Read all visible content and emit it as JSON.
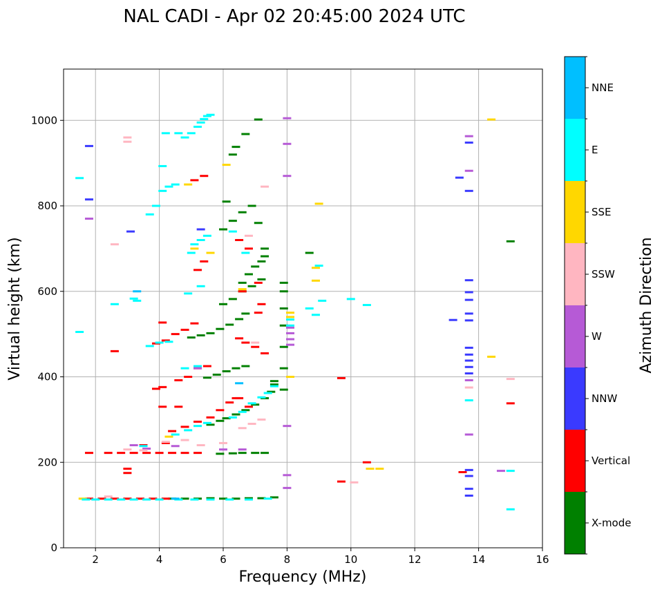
{
  "chart_data": {
    "type": "scatter",
    "title": "NAL CADI - Apr 02 20:45:00 2024 UTC",
    "xlabel": "Frequency (MHz)",
    "ylabel": "Virtual height (km)",
    "xlim": [
      1,
      16
    ],
    "ylim": [
      0,
      1120
    ],
    "xticks": [
      2,
      4,
      6,
      8,
      10,
      12,
      14,
      16
    ],
    "yticks": [
      0,
      200,
      400,
      600,
      800,
      1000
    ],
    "grid": true,
    "colorbar": {
      "title": "Azimuth Direction",
      "categories": [
        "X-mode",
        "Vertical",
        "NNW",
        "W",
        "SSW",
        "SSE",
        "E",
        "NNE"
      ],
      "colors": [
        "#008000",
        "#ff0000",
        "#3a3aff",
        "#b65ad6",
        "#ffb6c1",
        "#ffd700",
        "#00ffff",
        "#00bfff"
      ]
    },
    "series": [
      {
        "name": "X-mode",
        "points": [
          [
            4.4,
            115
          ],
          [
            4.8,
            115
          ],
          [
            5.2,
            115
          ],
          [
            5.6,
            116
          ],
          [
            6.0,
            115
          ],
          [
            6.4,
            115
          ],
          [
            6.8,
            116
          ],
          [
            7.2,
            116
          ],
          [
            7.6,
            118
          ],
          [
            5.9,
            220
          ],
          [
            6.3,
            221
          ],
          [
            6.6,
            222
          ],
          [
            7.0,
            222
          ],
          [
            7.3,
            222
          ],
          [
            5.6,
            288
          ],
          [
            5.9,
            297
          ],
          [
            6.1,
            303
          ],
          [
            6.4,
            312
          ],
          [
            6.7,
            322
          ],
          [
            7.0,
            335
          ],
          [
            7.3,
            350
          ],
          [
            7.5,
            365
          ],
          [
            7.6,
            382
          ],
          [
            7.6,
            390
          ],
          [
            5.5,
            398
          ],
          [
            5.8,
            405
          ],
          [
            6.1,
            413
          ],
          [
            6.4,
            420
          ],
          [
            6.7,
            425
          ],
          [
            5.0,
            492
          ],
          [
            5.3,
            497
          ],
          [
            5.6,
            502
          ],
          [
            5.9,
            512
          ],
          [
            6.2,
            522
          ],
          [
            6.5,
            535
          ],
          [
            6.7,
            548
          ],
          [
            6.0,
            570
          ],
          [
            6.3,
            582
          ],
          [
            6.6,
            600
          ],
          [
            6.9,
            612
          ],
          [
            7.2,
            628
          ],
          [
            6.6,
            620
          ],
          [
            6.8,
            640
          ],
          [
            7.0,
            658
          ],
          [
            7.2,
            670
          ],
          [
            7.3,
            682
          ],
          [
            6.0,
            745
          ],
          [
            6.3,
            765
          ],
          [
            6.6,
            785
          ],
          [
            6.9,
            800
          ],
          [
            7.1,
            760
          ],
          [
            7.3,
            700
          ],
          [
            6.1,
            810
          ],
          [
            6.4,
            938
          ],
          [
            6.7,
            968
          ],
          [
            6.3,
            920
          ],
          [
            7.9,
            370
          ],
          [
            7.9,
            420
          ],
          [
            7.9,
            470
          ],
          [
            7.9,
            520
          ],
          [
            7.9,
            560
          ],
          [
            7.9,
            600
          ],
          [
            7.9,
            620
          ],
          [
            8.7,
            690
          ],
          [
            7.1,
            1002
          ],
          [
            15.0,
            717
          ]
        ]
      },
      {
        "name": "Vertical",
        "points": [
          [
            1.8,
            115
          ],
          [
            2.2,
            115
          ],
          [
            2.6,
            115
          ],
          [
            3.0,
            115
          ],
          [
            3.4,
            115
          ],
          [
            3.8,
            115
          ],
          [
            4.2,
            115
          ],
          [
            2.4,
            222
          ],
          [
            2.8,
            222
          ],
          [
            3.2,
            222
          ],
          [
            3.6,
            222
          ],
          [
            4.0,
            222
          ],
          [
            4.4,
            222
          ],
          [
            4.8,
            222
          ],
          [
            5.2,
            222
          ],
          [
            3.5,
            240
          ],
          [
            4.2,
            245
          ],
          [
            4.4,
            273
          ],
          [
            4.8,
            283
          ],
          [
            5.2,
            295
          ],
          [
            5.6,
            305
          ],
          [
            5.9,
            322
          ],
          [
            6.2,
            340
          ],
          [
            6.5,
            350
          ],
          [
            3.9,
            372
          ],
          [
            4.1,
            376
          ],
          [
            4.6,
            392
          ],
          [
            4.9,
            400
          ],
          [
            5.2,
            420
          ],
          [
            5.5,
            425
          ],
          [
            6.4,
            350
          ],
          [
            6.8,
            330
          ],
          [
            3.9,
            478
          ],
          [
            4.2,
            485
          ],
          [
            4.5,
            500
          ],
          [
            4.8,
            510
          ],
          [
            5.1,
            525
          ],
          [
            4.1,
            527
          ],
          [
            6.5,
            490
          ],
          [
            6.7,
            480
          ],
          [
            7.0,
            470
          ],
          [
            7.3,
            455
          ],
          [
            7.1,
            550
          ],
          [
            7.2,
            570
          ],
          [
            6.6,
            600
          ],
          [
            7.1,
            620
          ],
          [
            5.2,
            650
          ],
          [
            5.4,
            670
          ],
          [
            6.8,
            700
          ],
          [
            6.5,
            720
          ],
          [
            5.1,
            860
          ],
          [
            5.4,
            870
          ],
          [
            3.0,
            175
          ],
          [
            3.0,
            185
          ],
          [
            1.8,
            222
          ],
          [
            2.6,
            460
          ],
          [
            4.1,
            330
          ],
          [
            4.6,
            330
          ],
          [
            9.7,
            397
          ],
          [
            9.7,
            155
          ],
          [
            10.5,
            200
          ],
          [
            13.5,
            177
          ],
          [
            15.0,
            338
          ]
        ]
      },
      {
        "name": "NNW",
        "points": [
          [
            13.7,
            122
          ],
          [
            13.7,
            138
          ],
          [
            13.7,
            168
          ],
          [
            13.7,
            182
          ],
          [
            13.7,
            408
          ],
          [
            13.7,
            423
          ],
          [
            13.7,
            438
          ],
          [
            13.7,
            452
          ],
          [
            13.7,
            468
          ],
          [
            13.7,
            532
          ],
          [
            13.7,
            548
          ],
          [
            13.7,
            580
          ],
          [
            13.7,
            598
          ],
          [
            13.7,
            626
          ],
          [
            13.7,
            835
          ],
          [
            13.7,
            948
          ],
          [
            13.2,
            533
          ],
          [
            13.4,
            866
          ],
          [
            3.1,
            740
          ],
          [
            5.3,
            745
          ],
          [
            1.8,
            815
          ],
          [
            1.8,
            940
          ]
        ]
      },
      {
        "name": "W",
        "points": [
          [
            8.1,
            475
          ],
          [
            8.1,
            488
          ],
          [
            8.1,
            502
          ],
          [
            8.1,
            515
          ],
          [
            8.0,
            170
          ],
          [
            8.0,
            140
          ],
          [
            8.0,
            285
          ],
          [
            8.0,
            1005
          ],
          [
            8.0,
            945
          ],
          [
            8.0,
            870
          ],
          [
            13.7,
            265
          ],
          [
            13.7,
            392
          ],
          [
            13.7,
            882
          ],
          [
            13.7,
            963
          ],
          [
            14.7,
            180
          ],
          [
            3.2,
            240
          ],
          [
            3.6,
            232
          ],
          [
            4.5,
            238
          ],
          [
            6.0,
            230
          ],
          [
            6.6,
            230
          ],
          [
            1.8,
            770
          ],
          [
            5.2,
            420
          ]
        ]
      },
      {
        "name": "SSW",
        "points": [
          [
            2.4,
            120
          ],
          [
            3.0,
            230
          ],
          [
            3.5,
            228
          ],
          [
            4.2,
            248
          ],
          [
            4.8,
            252
          ],
          [
            5.3,
            240
          ],
          [
            6.0,
            245
          ],
          [
            6.6,
            280
          ],
          [
            6.9,
            290
          ],
          [
            7.2,
            300
          ],
          [
            6.8,
            730
          ],
          [
            7.0,
            480
          ],
          [
            7.3,
            845
          ],
          [
            3.0,
            960
          ],
          [
            3.0,
            950
          ],
          [
            2.6,
            710
          ],
          [
            15.0,
            395
          ],
          [
            10.1,
            153
          ],
          [
            13.7,
            375
          ]
        ]
      },
      {
        "name": "SSE",
        "points": [
          [
            1.6,
            115
          ],
          [
            8.1,
            540
          ],
          [
            8.1,
            550
          ],
          [
            8.1,
            400
          ],
          [
            8.9,
            625
          ],
          [
            8.9,
            655
          ],
          [
            9.0,
            805
          ],
          [
            10.6,
            185
          ],
          [
            10.9,
            185
          ],
          [
            14.4,
            447
          ],
          [
            14.4,
            1002
          ],
          [
            4.3,
            260
          ],
          [
            6.6,
            605
          ],
          [
            6.1,
            896
          ],
          [
            5.6,
            690
          ],
          [
            4.9,
            850
          ],
          [
            5.1,
            700
          ]
        ]
      },
      {
        "name": "E",
        "points": [
          [
            1.7,
            113
          ],
          [
            2.0,
            113
          ],
          [
            2.4,
            113
          ],
          [
            2.8,
            113
          ],
          [
            3.2,
            113
          ],
          [
            3.6,
            113
          ],
          [
            4.0,
            113
          ],
          [
            4.6,
            113
          ],
          [
            5.1,
            113
          ],
          [
            5.6,
            113
          ],
          [
            6.2,
            113
          ],
          [
            6.8,
            113
          ],
          [
            7.4,
            115
          ],
          [
            3.5,
            238
          ],
          [
            4.5,
            265
          ],
          [
            4.9,
            275
          ],
          [
            5.2,
            285
          ],
          [
            5.5,
            292
          ],
          [
            6.3,
            305
          ],
          [
            6.6,
            318
          ],
          [
            6.9,
            338
          ],
          [
            7.2,
            352
          ],
          [
            7.4,
            362
          ],
          [
            7.6,
            378
          ],
          [
            4.0,
            480
          ],
          [
            4.3,
            482
          ],
          [
            3.7,
            472
          ],
          [
            4.8,
            420
          ],
          [
            5.2,
            425
          ],
          [
            4.9,
            595
          ],
          [
            5.3,
            612
          ],
          [
            3.2,
            583
          ],
          [
            3.3,
            578
          ],
          [
            2.6,
            570
          ],
          [
            1.5,
            505
          ],
          [
            1.5,
            865
          ],
          [
            3.7,
            780
          ],
          [
            3.9,
            800
          ],
          [
            4.1,
            835
          ],
          [
            4.3,
            845
          ],
          [
            4.5,
            850
          ],
          [
            4.1,
            893
          ],
          [
            4.2,
            970
          ],
          [
            4.6,
            970
          ],
          [
            4.8,
            960
          ],
          [
            5.0,
            970
          ],
          [
            5.2,
            985
          ],
          [
            5.3,
            995
          ],
          [
            5.4,
            1003
          ],
          [
            5.5,
            1010
          ],
          [
            5.6,
            1013
          ],
          [
            5.1,
            710
          ],
          [
            5.3,
            720
          ],
          [
            5.5,
            730
          ],
          [
            6.3,
            740
          ],
          [
            6.7,
            690
          ],
          [
            5.0,
            690
          ],
          [
            8.1,
            520
          ],
          [
            8.1,
            534
          ],
          [
            8.9,
            545
          ],
          [
            9.0,
            660
          ],
          [
            9.1,
            578
          ],
          [
            10.0,
            582
          ],
          [
            10.5,
            568
          ],
          [
            13.7,
            345
          ],
          [
            15.0,
            180
          ],
          [
            15.0,
            90
          ],
          [
            8.7,
            560
          ]
        ]
      },
      {
        "name": "NNE",
        "points": [
          [
            3.3,
            600
          ],
          [
            4.5,
            115
          ],
          [
            6.5,
            385
          ]
        ]
      }
    ]
  }
}
